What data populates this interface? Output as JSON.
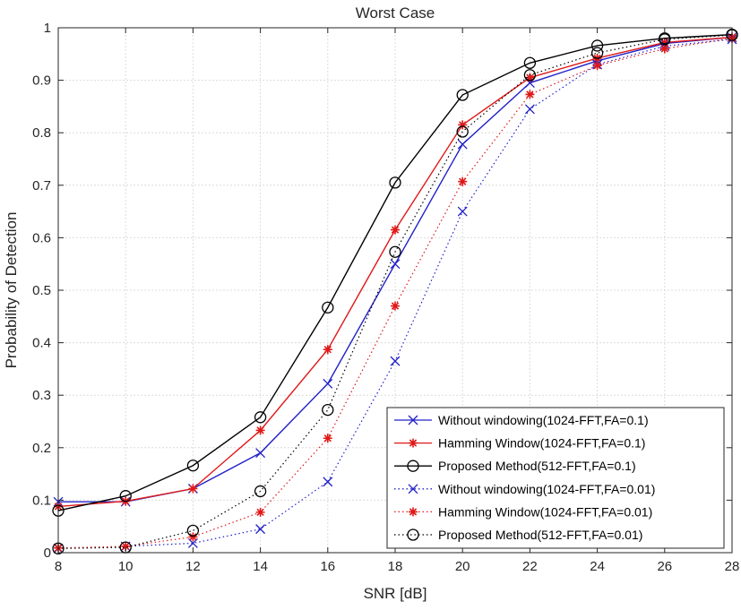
{
  "chart_data": {
    "type": "line",
    "title": "Worst Case",
    "xlabel": "SNR [dB]",
    "ylabel": "Probability of Detection",
    "xlim": [
      8,
      28
    ],
    "ylim": [
      0,
      1
    ],
    "xticks": [
      8,
      10,
      12,
      14,
      16,
      18,
      20,
      22,
      24,
      26,
      28
    ],
    "yticks": [
      0,
      0.1,
      0.2,
      0.3,
      0.4,
      0.5,
      0.6,
      0.7,
      0.8,
      0.9,
      1
    ],
    "ytick_labels": [
      "0",
      "0.1",
      "0.2",
      "0.3",
      "0.4",
      "0.5",
      "0.6",
      "0.7",
      "0.8",
      "0.9",
      "1"
    ],
    "grid": true,
    "legend_position": "bottom-right",
    "x": [
      8,
      10,
      12,
      14,
      16,
      18,
      20,
      22,
      24,
      26,
      28
    ],
    "series": [
      {
        "name": "Without windowing(1024-FFT,FA=0.1)",
        "color": "#2020c8",
        "marker": "x",
        "dash": "solid",
        "values": [
          0.097,
          0.097,
          0.122,
          0.19,
          0.322,
          0.55,
          0.778,
          0.895,
          0.937,
          0.97,
          0.982
        ]
      },
      {
        "name": "Hamming Window(1024-FFT,FA=0.1)",
        "color": "#e01818",
        "marker": "star",
        "dash": "solid",
        "values": [
          0.088,
          0.098,
          0.122,
          0.233,
          0.387,
          0.615,
          0.815,
          0.905,
          0.942,
          0.972,
          0.982
        ]
      },
      {
        "name": "Proposed Method(512-FFT,FA=0.1)",
        "color": "#000000",
        "marker": "circle",
        "dash": "solid",
        "values": [
          0.08,
          0.108,
          0.166,
          0.258,
          0.467,
          0.705,
          0.872,
          0.933,
          0.966,
          0.98,
          0.987
        ]
      },
      {
        "name": "Without windowing(1024-FFT,FA=0.01)",
        "color": "#2020c8",
        "marker": "x",
        "dash": "dotted",
        "values": [
          0.008,
          0.012,
          0.018,
          0.045,
          0.135,
          0.365,
          0.65,
          0.845,
          0.93,
          0.965,
          0.978
        ]
      },
      {
        "name": "Hamming Window(1024-FFT,FA=0.01)",
        "color": "#e01818",
        "marker": "star",
        "dash": "dotted",
        "values": [
          0.009,
          0.012,
          0.03,
          0.077,
          0.218,
          0.47,
          0.707,
          0.873,
          0.928,
          0.96,
          0.98
        ]
      },
      {
        "name": "Proposed Method(512-FFT,FA=0.01)",
        "color": "#000000",
        "marker": "circle",
        "dash": "dotted",
        "values": [
          0.008,
          0.01,
          0.042,
          0.117,
          0.272,
          0.573,
          0.802,
          0.91,
          0.952,
          0.978,
          0.986
        ]
      }
    ]
  }
}
